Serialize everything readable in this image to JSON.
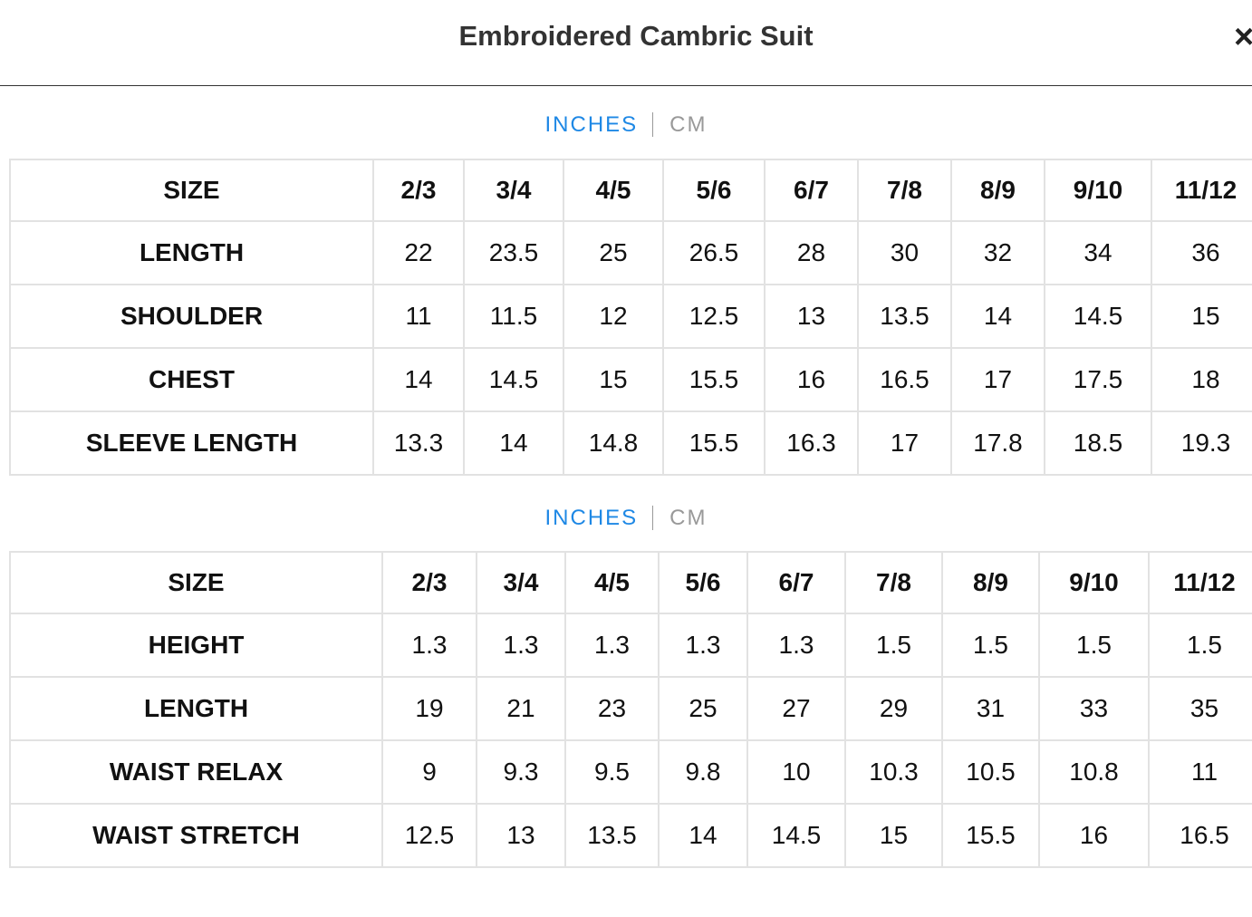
{
  "header": {
    "title": "Embroidered Cambric Suit",
    "close": "×"
  },
  "tables": [
    {
      "units": {
        "active": "INCHES",
        "other": "CM"
      },
      "rows": [
        [
          "SIZE",
          "2/3",
          "3/4",
          "4/5",
          "5/6",
          "6/7",
          "7/8",
          "8/9",
          "9/10",
          "11/12"
        ],
        [
          "LENGTH",
          "22",
          "23.5",
          "25",
          "26.5",
          "28",
          "30",
          "32",
          "34",
          "36"
        ],
        [
          "SHOULDER",
          "11",
          "11.5",
          "12",
          "12.5",
          "13",
          "13.5",
          "14",
          "14.5",
          "15"
        ],
        [
          "CHEST",
          "14",
          "14.5",
          "15",
          "15.5",
          "16",
          "16.5",
          "17",
          "17.5",
          "18"
        ],
        [
          "SLEEVE LENGTH",
          "13.3",
          "14",
          "14.8",
          "15.5",
          "16.3",
          "17",
          "17.8",
          "18.5",
          "19.3"
        ]
      ]
    },
    {
      "units": {
        "active": "INCHES",
        "other": "CM"
      },
      "rows": [
        [
          "SIZE",
          "2/3",
          "3/4",
          "4/5",
          "5/6",
          "6/7",
          "7/8",
          "8/9",
          "9/10",
          "11/12"
        ],
        [
          "HEIGHT",
          "1.3",
          "1.3",
          "1.3",
          "1.3",
          "1.3",
          "1.5",
          "1.5",
          "1.5",
          "1.5"
        ],
        [
          "LENGTH",
          "19",
          "21",
          "23",
          "25",
          "27",
          "29",
          "31",
          "33",
          "35"
        ],
        [
          "WAIST RELAX",
          "9",
          "9.3",
          "9.5",
          "9.8",
          "10",
          "10.3",
          "10.5",
          "10.8",
          "11"
        ],
        [
          "WAIST STRETCH",
          "12.5",
          "13",
          "13.5",
          "14",
          "14.5",
          "15",
          "15.5",
          "16",
          "16.5"
        ]
      ]
    }
  ]
}
